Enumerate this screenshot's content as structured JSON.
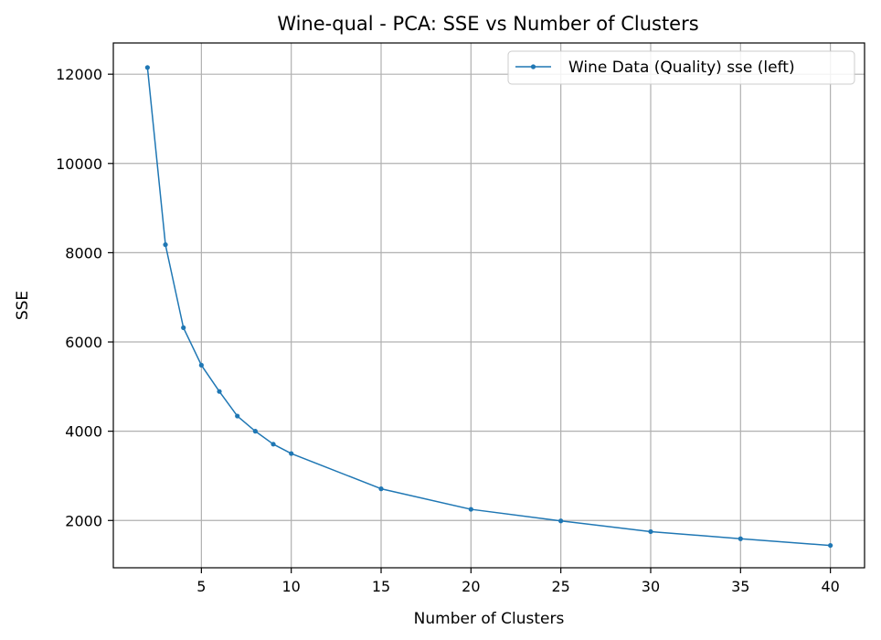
{
  "chart_data": {
    "type": "line",
    "title": "Wine-qual - PCA: SSE vs Number of Clusters",
    "xlabel": "Number of Clusters",
    "ylabel": "SSE",
    "xlim": [
      0.1,
      41.9
    ],
    "ylim": [
      940,
      12700
    ],
    "xticks": [
      5,
      10,
      15,
      20,
      25,
      30,
      35,
      40
    ],
    "yticks": [
      2000,
      4000,
      6000,
      8000,
      10000,
      12000
    ],
    "grid": true,
    "legend": "top-right",
    "series": [
      {
        "name": "Wine Data (Quality) sse (left)",
        "color": "#1f77b4",
        "x": [
          2,
          3,
          4,
          5,
          6,
          7,
          8,
          9,
          10,
          15,
          20,
          25,
          30,
          35,
          40
        ],
        "y": [
          12150,
          8180,
          6320,
          5480,
          4890,
          4340,
          4000,
          3710,
          3500,
          2710,
          2250,
          1990,
          1750,
          1590,
          1440
        ]
      }
    ]
  }
}
